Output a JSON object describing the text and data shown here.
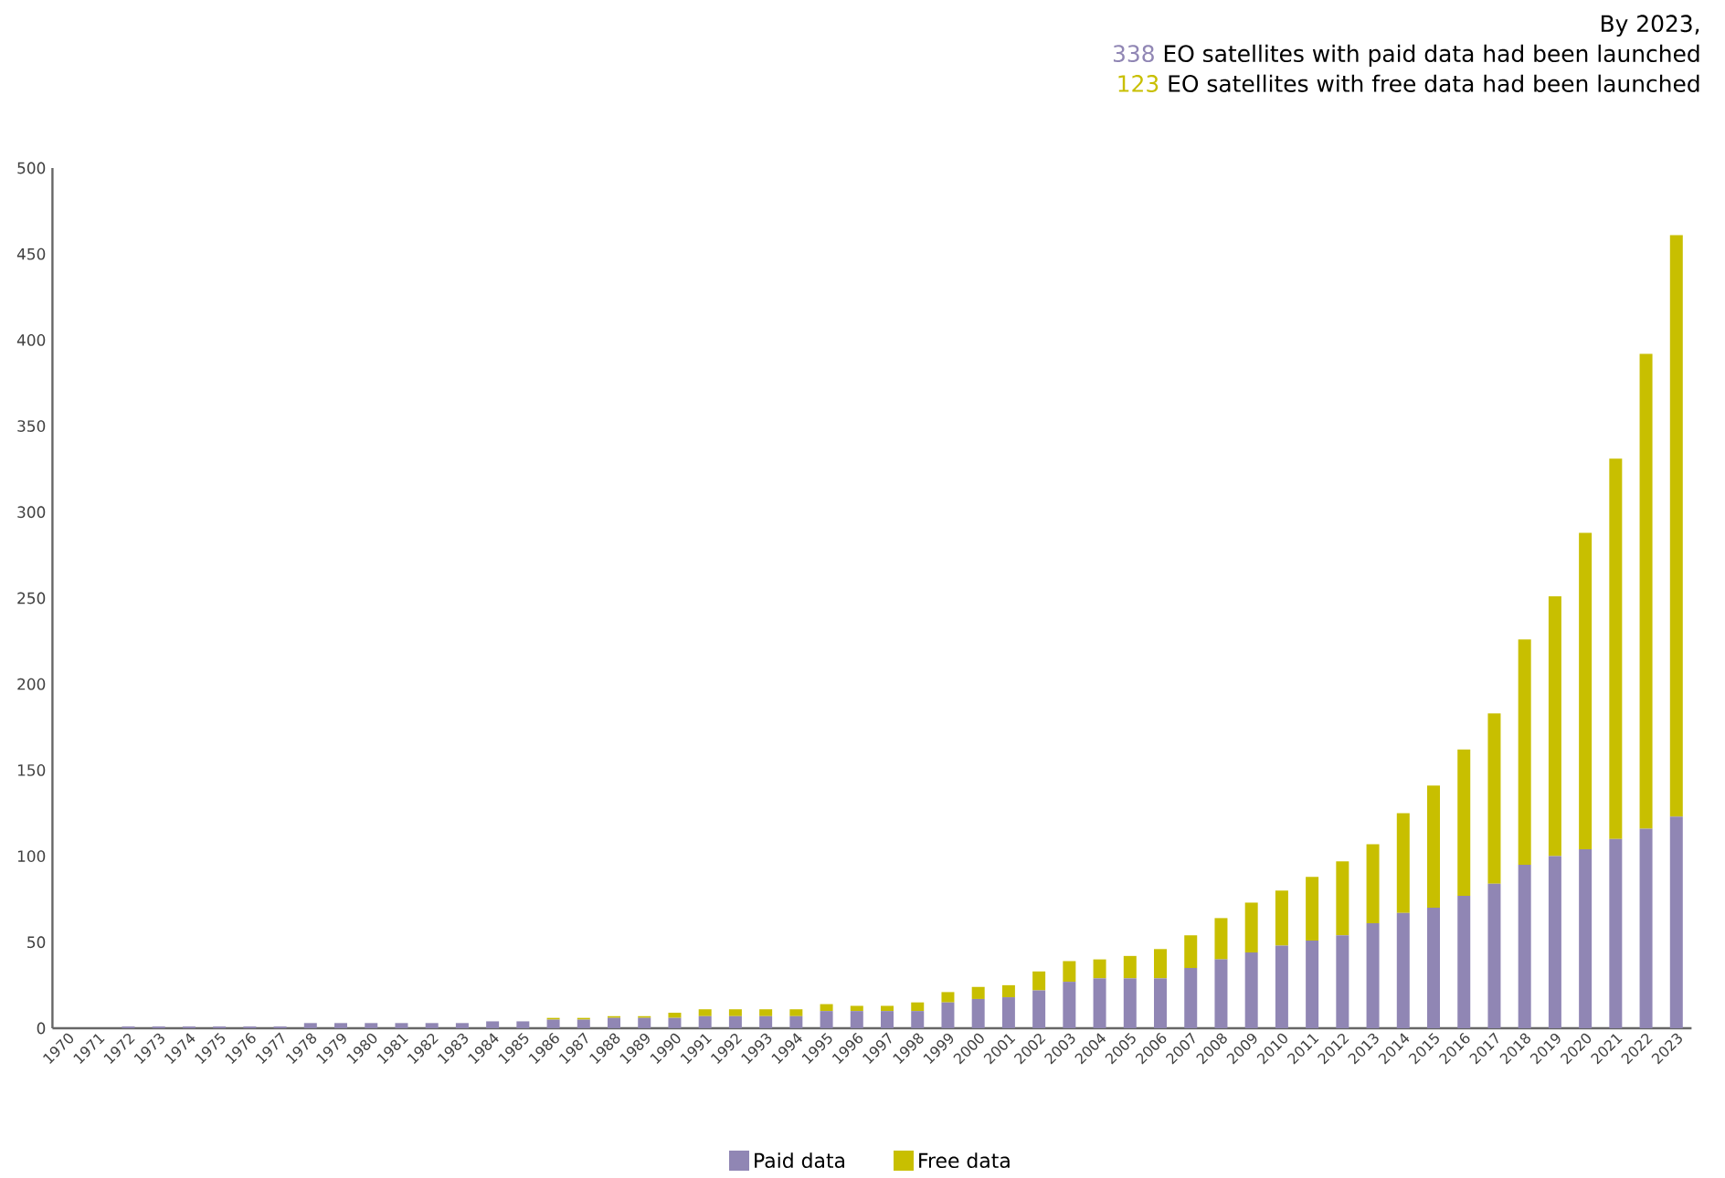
{
  "chart_data": {
    "type": "bar",
    "stacked": true,
    "title": "By 2023,",
    "annotations": [
      "338",
      "EO satellites with paid data had been launched",
      "123",
      "EO satellites with free data had been launched"
    ],
    "categories": [
      "1970",
      "1971",
      "1972",
      "1973",
      "1974",
      "1975",
      "1976",
      "1977",
      "1978",
      "1979",
      "1980",
      "1981",
      "1982",
      "1983",
      "1984",
      "1985",
      "1986",
      "1987",
      "1988",
      "1989",
      "1990",
      "1991",
      "1992",
      "1993",
      "1994",
      "1995",
      "1996",
      "1997",
      "1998",
      "1999",
      "2000",
      "2001",
      "2002",
      "2003",
      "2004",
      "2005",
      "2006",
      "2007",
      "2008",
      "2009",
      "2010",
      "2011",
      "2012",
      "2013",
      "2014",
      "2015",
      "2016",
      "2017",
      "2018",
      "2019",
      "2020",
      "2021",
      "2022",
      "2023"
    ],
    "series": [
      {
        "name": "Paid data",
        "color": "#9086b4",
        "values": [
          0,
          0,
          1,
          1,
          1,
          1,
          1,
          1,
          3,
          3,
          3,
          3,
          3,
          3,
          4,
          4,
          5,
          5,
          6,
          6,
          6,
          7,
          7,
          7,
          7,
          10,
          10,
          10,
          10,
          15,
          17,
          18,
          22,
          27,
          29,
          29,
          29,
          35,
          40,
          44,
          48,
          51,
          54,
          61,
          67,
          70,
          77,
          84,
          95,
          100,
          104,
          110,
          116,
          123
        ]
      },
      {
        "name": "Free data",
        "color": "#c8bf00",
        "values": [
          0,
          0,
          0,
          0,
          0,
          0,
          0,
          0,
          0,
          0,
          0,
          0,
          0,
          0,
          0,
          0,
          1,
          1,
          1,
          1,
          3,
          4,
          4,
          4,
          4,
          4,
          3,
          3,
          5,
          6,
          7,
          7,
          11,
          12,
          11,
          13,
          17,
          19,
          24,
          29,
          32,
          37,
          43,
          46,
          58,
          71,
          85,
          99,
          131,
          151,
          184,
          221,
          276,
          338
        ]
      }
    ],
    "ylim": [
      0,
      500
    ],
    "yticks": [
      0,
      50,
      100,
      150,
      200,
      250,
      300,
      350,
      400,
      450,
      500
    ],
    "legend": "bottom"
  }
}
